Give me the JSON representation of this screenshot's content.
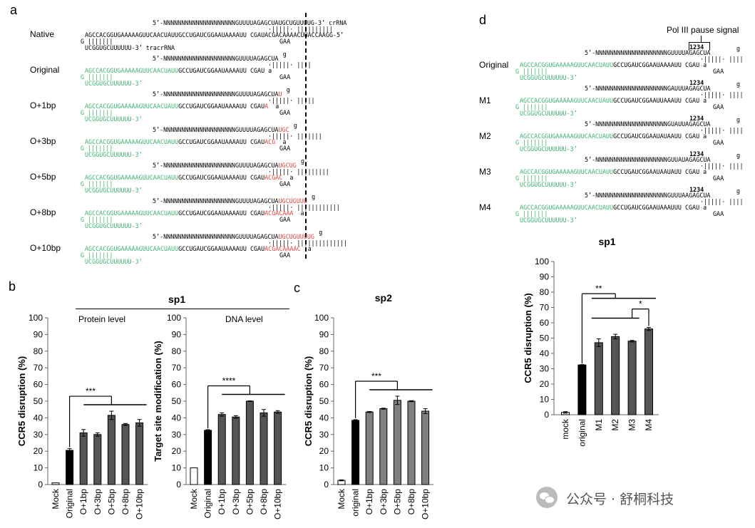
{
  "panel_a": {
    "label": "a",
    "crrna_suffix": "crRNA",
    "tracrrna_suffix": "tracrRNA",
    "rows": [
      {
        "name": "Native",
        "top": "5’-NNNNNNNNNNNNNNNNNNNNGUUUUAGAGCUAUGCUGUUUUG-3’",
        "pair": "·|||||· ||||||||||",
        "bottom": "AGCCACGGUGAAAAAGUUCAACUAUUGCCUGAUCGGAAUAAAAUU CGAUACGACAAAACUUACCAAGG-5’",
        "tail": "G |||||||",
        "tail2": "UCGGUGCUUUUUU-3’",
        "gaa": "GAA"
      },
      {
        "name": "Original",
        "top": "5’-NNNNNNNNNNNNNNNNNNNNGUUUUAGAGCUA",
        "loop": "g a",
        "pair": "·|||||· ||||",
        "green": "AGCCACGGUGAAAAAGUUCAACUAUU",
        "bottom": "GCCUGAUCGGAAUAAAAUU CGAU a",
        "tail": "G |||||||",
        "tail2": "UCGGUGCUUUUUU-3’",
        "gaa": "GAA"
      },
      {
        "name": "O+1bp",
        "top": "5’-NNNNNNNNNNNNNNNNNNNNGUUUUAGAGCUA",
        "ext_top": "U",
        "loop": "g a",
        "pair": "·|||||· ||||",
        "green": "AGCCACGGUGAAAAAGUUCAACUAUU",
        "bottom": "GCCUGAUCGGAAUAAAAUU CGAU",
        "ext_bot": "A",
        "tail": "G |||||||",
        "tail2": "UCGGUGCUUUUUU-3’",
        "gaa": "GAA"
      },
      {
        "name": "O+3bp",
        "top": "5’-NNNNNNNNNNNNNNNNNNNNGUUUUAGAGCUA",
        "ext_top": "UGC",
        "loop": "g a",
        "pair": "·|||||· ||||",
        "green": "AGCCACGGUGAAAAAGUUCAACUAUU",
        "bottom": "GCCUGAUCGGAAUAAAAUU CGAU",
        "ext_bot": "ACG",
        "tail": "G |||||||",
        "tail2": "UCGGUGCUUUUUU-3’",
        "gaa": "GAA"
      },
      {
        "name": "O+5bp",
        "top": "5’-NNNNNNNNNNNNNNNNNNNNGUUUUAGAGCUA",
        "ext_top": "UGCUG",
        "loop": "g a",
        "pair": "·|||||· ||||",
        "green": "AGCCACGGUGAAAAAGUUCAACUAUU",
        "bottom": "GCCUGAUCGGAAUAAAAUU CGAU",
        "ext_bot": "ACGAC",
        "tail": "G |||||||",
        "tail2": "UCGGUGCUUUUUU-3’",
        "gaa": "GAA"
      },
      {
        "name": "O+8bp",
        "top": "5’-NNNNNNNNNNNNNNNNNNNNGUUUUAGAGCUA",
        "ext_top": "UGCUGUUU",
        "loop": "g a",
        "pair": "·|||||· ||||",
        "green": "AGCCACGGUGAAAAAGUUCAACUAUU",
        "bottom": "GCCUGAUCGGAAUAAAAUU CGAU",
        "ext_bot": "ACGACAAA",
        "tail": "G |||||||",
        "tail2": "UCGGUGCUUUUUU-3’",
        "gaa": "GAA"
      },
      {
        "name": "O+10bp",
        "top": "5’-NNNNNNNNNNNNNNNNNNNNGUUUUAGAGCUA",
        "ext_top": "UGCUGUUUUG",
        "loop": "g a",
        "pair": "·|||||· ||||",
        "green": "AGCCACGGUGAAAAAGUUCAACUAUU",
        "bottom": "GCCUGAUCGGAAUAAAAUU CGAU",
        "ext_bot": "ACGACAAAAC",
        "tail": "G |||||||",
        "tail2": "UCGGUGCUUUUUU-3’",
        "gaa": "GAA"
      }
    ]
  },
  "panel_d": {
    "label": "d",
    "pause_signal": "Pol III pause signal",
    "numbers": "1234",
    "rows": [
      {
        "name": "Original",
        "top": "5’-NNNNNNNNNNNNNNNNNNNNGUUUUAGAGCUA",
        "bottom": "GCCUGAUCGGAAUAAAAUU CGAU a"
      },
      {
        "name": "M1",
        "top": "5’-NNNNNNNNNNNNNNNNNNNNGAUUUAGAGCUA",
        "bottom": "GCCUGAUCGGAAUUAAAUU CGAU a"
      },
      {
        "name": "M2",
        "top": "5’-NNNNNNNNNNNNNNNNNNNNGUAUUAGAGCUA",
        "bottom": "GCCUGAUCGGAAUAUAAUU CGAU a"
      },
      {
        "name": "M3",
        "top": "5’-NNNNNNNNNNNNNNNNNNNNGUUAUAGAGCUA",
        "bottom": "GCCUGAUCGGAAUAAUAUU CGAU a"
      },
      {
        "name": "M4",
        "top": "5’-NNNNNNNNNNNNNNNNNNNNGUUUAAGAGCUA",
        "bottom": "GCCUGAUCGGAAUAAAUUU CGAU a"
      }
    ],
    "green": "AGCCACGGUGAAAAAGUUCAACUAUU",
    "tail": "G |||||||",
    "tail2": "UCGGUGCUUUUUU-3’",
    "gaa": "GAA",
    "pair": "·|||||· ||||",
    "loop": "g a"
  },
  "panel_b": {
    "label": "b",
    "sp_title": "sp1",
    "protein_level": "Protein level",
    "dna_level": "DNA level"
  },
  "panel_c": {
    "label": "c"
  },
  "chart_data": [
    {
      "type": "bar",
      "panel": "b-protein",
      "title": "",
      "ylabel": "CCR5 disruption (%)",
      "xlabel": "",
      "ylim": [
        0,
        100
      ],
      "yticks": [
        0,
        10,
        20,
        30,
        40,
        50,
        60,
        70,
        80,
        90,
        100
      ],
      "categories": [
        "Mock",
        "Original",
        "O+1bp",
        "O+3bp",
        "O+5bp",
        "O+8bp",
        "O+10bp"
      ],
      "values": [
        1,
        20.5,
        31,
        30,
        41.5,
        36,
        37
      ],
      "errors": [
        0,
        1,
        2,
        1,
        2.5,
        0.6,
        2
      ],
      "colors": [
        "#ffffff",
        "#000000",
        "#555555",
        "#555555",
        "#555555",
        "#555555",
        "#555555"
      ],
      "significance": "***"
    },
    {
      "type": "bar",
      "panel": "b-dna",
      "title": "",
      "ylabel": "Target site modification (%)",
      "xlabel": "",
      "ylim": [
        0,
        100
      ],
      "yticks": [
        0,
        10,
        20,
        30,
        40,
        50,
        60,
        70,
        80,
        90,
        100
      ],
      "categories": [
        "Mock",
        "Original",
        "O+1bp",
        "O+3bp",
        "O+5bp",
        "O+8bp",
        "O+10bp"
      ],
      "values": [
        10,
        32.5,
        42,
        40.5,
        50,
        43,
        43.5
      ],
      "errors": [
        0,
        0.4,
        1,
        0.8,
        0.2,
        2,
        0.8
      ],
      "colors": [
        "#ffffff",
        "#000000",
        "#555555",
        "#555555",
        "#555555",
        "#555555",
        "#555555"
      ],
      "significance": "****"
    },
    {
      "type": "bar",
      "panel": "c",
      "title": "sp2",
      "ylabel": "CCR5 disruption (%)",
      "xlabel": "",
      "ylim": [
        0,
        100
      ],
      "yticks": [
        0,
        10,
        20,
        30,
        40,
        50,
        60,
        70,
        80,
        90,
        100
      ],
      "categories": [
        "Mock",
        "original",
        "O+1bp",
        "O+3bp",
        "O+5bp",
        "O+8bp",
        "O+10bp"
      ],
      "values": [
        2.5,
        38.5,
        43.5,
        45.5,
        50.5,
        50,
        44
      ],
      "errors": [
        0.3,
        0.4,
        0.3,
        0.3,
        2.5,
        0.3,
        1.5
      ],
      "colors": [
        "#ffffff",
        "#000000",
        "#808080",
        "#808080",
        "#808080",
        "#808080",
        "#808080"
      ],
      "significance": "***"
    },
    {
      "type": "bar",
      "panel": "d",
      "title": "sp1",
      "ylabel": "CCR5 disruption (%)",
      "xlabel": "",
      "ylim": [
        0,
        100
      ],
      "yticks": [
        0,
        10,
        20,
        30,
        40,
        50,
        60,
        70,
        80,
        90,
        100
      ],
      "categories": [
        "mock",
        "original",
        "M1",
        "M2",
        "M3",
        "M4"
      ],
      "values": [
        1.5,
        32.5,
        47,
        51,
        48,
        56
      ],
      "errors": [
        0.5,
        0.2,
        2.5,
        1.5,
        0.5,
        1
      ],
      "colors": [
        "#ffffff",
        "#000000",
        "#555555",
        "#555555",
        "#555555",
        "#555555"
      ],
      "significance": [
        "**",
        "*"
      ]
    }
  ],
  "watermark": "公众号 · 舒桐科技"
}
